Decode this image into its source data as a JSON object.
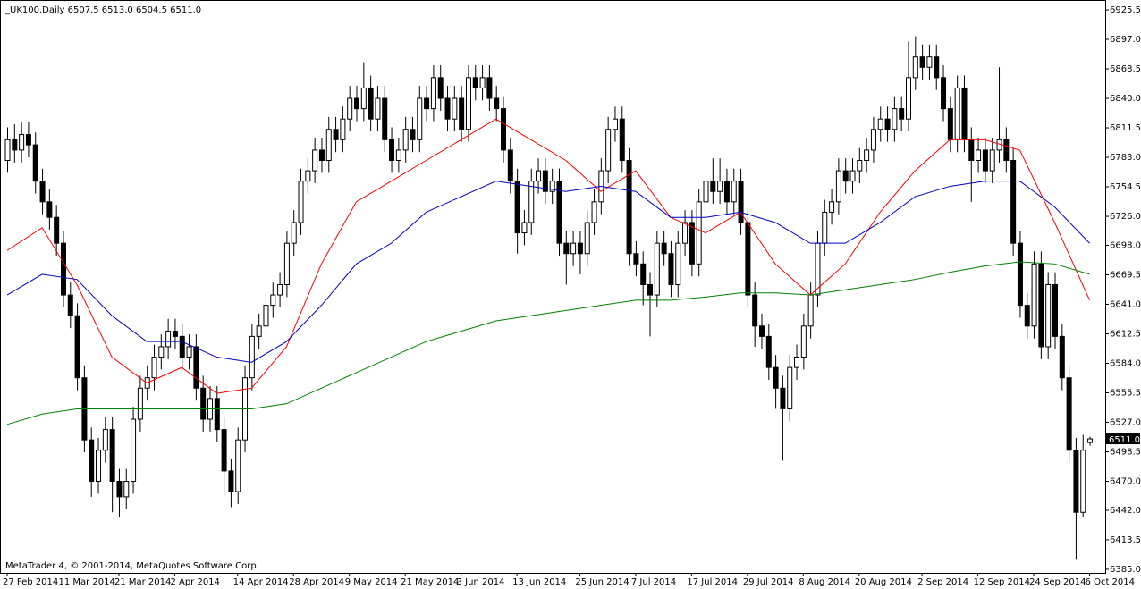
{
  "chart_data": {
    "type": "candlestick",
    "header": "_UK100,Daily  6507.5 6513.0 6504.5 6511.0",
    "footer": "MetaTrader 4, © 2001-2014, MetaQuotes Software Corp.",
    "ylim": [
      6381.5,
      6935
    ],
    "yticks": [
      6925.5,
      {
        "value": 6897,
        "label": "6897.0"
      },
      6868.5,
      {
        "value": 6840,
        "label": "6840.0"
      },
      6811.5,
      {
        "value": 6783,
        "label": "6783.0"
      },
      6754.5,
      {
        "value": 6726,
        "label": "6726.0"
      },
      {
        "value": 6698,
        "label": "6698.0"
      },
      6669.5,
      {
        "value": 6641,
        "label": "6641.0"
      },
      6612.5,
      {
        "value": 6584,
        "label": "6584.0"
      },
      6555.5,
      {
        "value": 6527,
        "label": "6527.0"
      },
      6498.5,
      {
        "value": 6470,
        "label": "6470.0"
      },
      {
        "value": 6442,
        "label": "6442.0"
      },
      6413.5,
      {
        "value": 6385,
        "label": "6385.0"
      }
    ],
    "last_price": {
      "value": 6511,
      "label": "6511.0"
    },
    "up_color": "#ffffff",
    "down_color": "#000000",
    "categories": [
      "27 Feb 2014",
      null,
      null,
      null,
      null,
      null,
      null,
      null,
      "11 Mar 2014",
      null,
      null,
      null,
      null,
      null,
      null,
      null,
      "21 Mar 2014",
      null,
      null,
      null,
      null,
      null,
      null,
      null,
      "2 Apr 2014",
      null,
      null,
      null,
      null,
      null,
      null,
      null,
      null,
      "14 Apr 2014",
      null,
      null,
      null,
      null,
      null,
      null,
      null,
      "28 Apr 2014",
      null,
      null,
      null,
      null,
      null,
      null,
      null,
      "9 May 2014",
      null,
      null,
      null,
      null,
      null,
      null,
      null,
      "21 May 2014",
      null,
      null,
      null,
      null,
      null,
      null,
      null,
      "3 Jun 2014",
      null,
      null,
      null,
      null,
      null,
      null,
      null,
      "13 Jun 2014",
      null,
      null,
      null,
      null,
      null,
      null,
      null,
      null,
      "25 Jun 2014",
      null,
      null,
      null,
      null,
      null,
      null,
      null,
      "7 Jul 2014",
      null,
      null,
      null,
      null,
      null,
      null,
      null,
      "17 Jul 2014",
      null,
      null,
      null,
      null,
      null,
      null,
      null,
      "29 Jul 2014",
      null,
      null,
      null,
      null,
      null,
      null,
      null,
      "8 Aug 2014",
      null,
      null,
      null,
      null,
      null,
      null,
      null,
      "20 Aug 2014",
      null,
      null,
      null,
      null,
      null,
      null,
      null,
      null,
      "2 Sep 2014",
      null,
      null,
      null,
      null,
      null,
      null,
      null,
      "12 Sep 2014",
      null,
      null,
      null,
      null,
      null,
      null,
      null,
      "24 Sep 2014",
      null,
      null,
      null,
      null,
      null,
      null,
      null,
      "6 Oct 2014"
    ],
    "ohlc": [
      [
        6780,
        6812,
        6768,
        6800
      ],
      [
        6800,
        6815,
        6778,
        6790
      ],
      [
        6790,
        6817,
        6778,
        6805
      ],
      [
        6805,
        6817,
        6783,
        6795
      ],
      [
        6795,
        6807,
        6748,
        6760
      ],
      [
        6760,
        6772,
        6728,
        6740
      ],
      [
        6740,
        6752,
        6713,
        6725
      ],
      [
        6725,
        6737,
        6688,
        6700
      ],
      [
        6700,
        6712,
        6638,
        6650
      ],
      [
        6650,
        6662,
        6618,
        6630
      ],
      [
        6630,
        6642,
        6558,
        6570
      ],
      [
        6570,
        6582,
        6498,
        6510
      ],
      [
        6510,
        6522,
        6455,
        6470
      ],
      [
        6470,
        6512,
        6458,
        6500
      ],
      [
        6500,
        6532,
        6488,
        6520
      ],
      [
        6520,
        6532,
        6440,
        6470
      ],
      [
        6470,
        6482,
        6435,
        6455
      ],
      [
        6455,
        6482,
        6443,
        6470
      ],
      [
        6470,
        6542,
        6458,
        6530
      ],
      [
        6530,
        6572,
        6518,
        6560
      ],
      [
        6560,
        6582,
        6548,
        6570
      ],
      [
        6570,
        6602,
        6558,
        6590
      ],
      [
        6590,
        6612,
        6578,
        6600
      ],
      [
        6600,
        6627,
        6588,
        6615
      ],
      [
        6615,
        6627,
        6598,
        6610
      ],
      [
        6610,
        6622,
        6578,
        6590
      ],
      [
        6590,
        6612,
        6578,
        6600
      ],
      [
        6600,
        6612,
        6548,
        6560
      ],
      [
        6560,
        6572,
        6518,
        6530
      ],
      [
        6530,
        6562,
        6518,
        6550
      ],
      [
        6550,
        6562,
        6508,
        6520
      ],
      [
        6520,
        6532,
        6455,
        6480
      ],
      [
        6480,
        6492,
        6445,
        6460
      ],
      [
        6460,
        6522,
        6448,
        6510
      ],
      [
        6510,
        6582,
        6498,
        6570
      ],
      [
        6570,
        6622,
        6558,
        6610
      ],
      [
        6610,
        6632,
        6598,
        6620
      ],
      [
        6620,
        6652,
        6608,
        6640
      ],
      [
        6640,
        6662,
        6628,
        6650
      ],
      [
        6650,
        6672,
        6638,
        6660
      ],
      [
        6660,
        6712,
        6648,
        6700
      ],
      [
        6700,
        6732,
        6688,
        6720
      ],
      [
        6720,
        6772,
        6708,
        6760
      ],
      [
        6760,
        6782,
        6748,
        6770
      ],
      [
        6770,
        6802,
        6758,
        6790
      ],
      [
        6790,
        6802,
        6768,
        6780
      ],
      [
        6780,
        6822,
        6768,
        6810
      ],
      [
        6810,
        6822,
        6788,
        6800
      ],
      [
        6800,
        6832,
        6788,
        6820
      ],
      [
        6820,
        6852,
        6808,
        6840
      ],
      [
        6840,
        6852,
        6818,
        6830
      ],
      [
        6830,
        6875,
        6818,
        6850
      ],
      [
        6850,
        6862,
        6808,
        6820
      ],
      [
        6820,
        6852,
        6808,
        6840
      ],
      [
        6840,
        6852,
        6788,
        6800
      ],
      [
        6800,
        6812,
        6768,
        6780
      ],
      [
        6780,
        6802,
        6768,
        6790
      ],
      [
        6790,
        6822,
        6778,
        6810
      ],
      [
        6810,
        6822,
        6788,
        6800
      ],
      [
        6800,
        6852,
        6788,
        6840
      ],
      [
        6840,
        6852,
        6818,
        6830
      ],
      [
        6830,
        6872,
        6818,
        6860
      ],
      [
        6860,
        6872,
        6828,
        6840
      ],
      [
        6840,
        6852,
        6808,
        6820
      ],
      [
        6820,
        6852,
        6808,
        6840
      ],
      [
        6840,
        6852,
        6798,
        6810
      ],
      [
        6810,
        6872,
        6798,
        6860
      ],
      [
        6860,
        6872,
        6838,
        6850
      ],
      [
        6850,
        6872,
        6838,
        6860
      ],
      [
        6860,
        6872,
        6828,
        6840
      ],
      [
        6840,
        6852,
        6818,
        6830
      ],
      [
        6830,
        6842,
        6778,
        6790
      ],
      [
        6790,
        6802,
        6748,
        6760
      ],
      [
        6760,
        6772,
        6690,
        6710
      ],
      [
        6710,
        6732,
        6698,
        6720
      ],
      [
        6720,
        6772,
        6708,
        6760
      ],
      [
        6760,
        6782,
        6748,
        6770
      ],
      [
        6770,
        6782,
        6738,
        6750
      ],
      [
        6750,
        6772,
        6738,
        6760
      ],
      [
        6760,
        6772,
        6688,
        6700
      ],
      [
        6700,
        6712,
        6660,
        6690
      ],
      [
        6690,
        6712,
        6678,
        6700
      ],
      [
        6700,
        6712,
        6670,
        6690
      ],
      [
        6690,
        6732,
        6678,
        6720
      ],
      [
        6720,
        6752,
        6708,
        6740
      ],
      [
        6740,
        6782,
        6728,
        6770
      ],
      [
        6770,
        6822,
        6758,
        6810
      ],
      [
        6810,
        6832,
        6798,
        6820
      ],
      [
        6820,
        6832,
        6768,
        6780
      ],
      [
        6780,
        6792,
        6678,
        6690
      ],
      [
        6690,
        6702,
        6668,
        6680
      ],
      [
        6680,
        6692,
        6640,
        6660
      ],
      [
        6660,
        6672,
        6610,
        6650
      ],
      [
        6650,
        6712,
        6638,
        6700
      ],
      [
        6700,
        6712,
        6678,
        6690
      ],
      [
        6690,
        6702,
        6648,
        6660
      ],
      [
        6660,
        6712,
        6648,
        6700
      ],
      [
        6700,
        6732,
        6688,
        6720
      ],
      [
        6720,
        6732,
        6668,
        6680
      ],
      [
        6680,
        6752,
        6668,
        6740
      ],
      [
        6740,
        6772,
        6728,
        6760
      ],
      [
        6760,
        6782,
        6738,
        6750
      ],
      [
        6750,
        6782,
        6738,
        6760
      ],
      [
        6760,
        6772,
        6728,
        6740
      ],
      [
        6740,
        6772,
        6728,
        6760
      ],
      [
        6760,
        6772,
        6708,
        6720
      ],
      [
        6720,
        6732,
        6638,
        6650
      ],
      [
        6650,
        6662,
        6600,
        6620
      ],
      [
        6620,
        6632,
        6598,
        6610
      ],
      [
        6610,
        6622,
        6568,
        6580
      ],
      [
        6580,
        6592,
        6540,
        6560
      ],
      [
        6560,
        6572,
        6490,
        6540
      ],
      [
        6540,
        6592,
        6528,
        6580
      ],
      [
        6580,
        6602,
        6568,
        6590
      ],
      [
        6590,
        6632,
        6578,
        6620
      ],
      [
        6620,
        6662,
        6608,
        6650
      ],
      [
        6650,
        6712,
        6638,
        6700
      ],
      [
        6700,
        6742,
        6688,
        6730
      ],
      [
        6730,
        6752,
        6718,
        6740
      ],
      [
        6740,
        6782,
        6728,
        6770
      ],
      [
        6770,
        6782,
        6748,
        6760
      ],
      [
        6760,
        6782,
        6748,
        6770
      ],
      [
        6770,
        6792,
        6758,
        6780
      ],
      [
        6780,
        6802,
        6768,
        6790
      ],
      [
        6790,
        6822,
        6778,
        6810
      ],
      [
        6810,
        6832,
        6798,
        6820
      ],
      [
        6820,
        6832,
        6798,
        6810
      ],
      [
        6810,
        6842,
        6798,
        6830
      ],
      [
        6830,
        6842,
        6808,
        6820
      ],
      [
        6820,
        6895,
        6808,
        6860
      ],
      [
        6860,
        6900,
        6848,
        6880
      ],
      [
        6880,
        6892,
        6858,
        6870
      ],
      [
        6870,
        6892,
        6858,
        6880
      ],
      [
        6880,
        6892,
        6848,
        6860
      ],
      [
        6860,
        6872,
        6818,
        6830
      ],
      [
        6830,
        6842,
        6788,
        6800
      ],
      [
        6800,
        6862,
        6788,
        6850
      ],
      [
        6850,
        6862,
        6788,
        6800
      ],
      [
        6800,
        6812,
        6740,
        6780
      ],
      [
        6780,
        6802,
        6768,
        6790
      ],
      [
        6790,
        6802,
        6758,
        6770
      ],
      [
        6770,
        6802,
        6758,
        6790
      ],
      [
        6790,
        6870,
        6778,
        6800
      ],
      [
        6800,
        6812,
        6768,
        6780
      ],
      [
        6780,
        6792,
        6688,
        6700
      ],
      [
        6700,
        6712,
        6628,
        6640
      ],
      [
        6640,
        6652,
        6608,
        6620
      ],
      [
        6620,
        6692,
        6608,
        6680
      ],
      [
        6680,
        6692,
        6588,
        6600
      ],
      [
        6600,
        6672,
        6588,
        6660
      ],
      [
        6660,
        6672,
        6598,
        6610
      ],
      [
        6610,
        6622,
        6558,
        6570
      ],
      [
        6570,
        6582,
        6488,
        6500
      ],
      [
        6500,
        6512,
        6395,
        6440
      ],
      [
        6440,
        6515,
        6435,
        6500
      ],
      [
        6507.5,
        6513,
        6504.5,
        6511
      ]
    ],
    "moving_averages": [
      {
        "color": "#ff0000",
        "x": [
          0,
          5,
          10,
          15,
          20,
          25,
          30,
          35,
          40,
          45,
          50,
          55,
          60,
          65,
          70,
          75,
          80,
          85,
          90,
          95,
          100,
          105,
          110,
          115,
          120,
          125,
          130,
          135,
          140,
          145,
          150,
          155
        ],
        "values": [
          6693,
          6715,
          6660,
          6590,
          6565,
          6580,
          6555,
          6560,
          6600,
          6680,
          6740,
          6760,
          6780,
          6800,
          6820,
          6800,
          6780,
          6750,
          6770,
          6725,
          6710,
          6730,
          6680,
          6650,
          6680,
          6730,
          6770,
          6800,
          6800,
          6790,
          6720,
          6645
        ]
      },
      {
        "color": "#0000c0",
        "x": [
          0,
          5,
          10,
          15,
          20,
          25,
          30,
          35,
          40,
          45,
          50,
          55,
          60,
          65,
          70,
          75,
          80,
          85,
          90,
          95,
          100,
          105,
          110,
          115,
          120,
          125,
          130,
          135,
          140,
          145,
          150,
          155
        ],
        "values": [
          6650,
          6670,
          6665,
          6630,
          6605,
          6605,
          6590,
          6585,
          6605,
          6640,
          6680,
          6700,
          6730,
          6745,
          6760,
          6755,
          6750,
          6755,
          6750,
          6725,
          6725,
          6730,
          6720,
          6700,
          6700,
          6720,
          6745,
          6755,
          6760,
          6760,
          6735,
          6700
        ]
      },
      {
        "color": "#008000",
        "x": [
          0,
          5,
          10,
          15,
          20,
          25,
          30,
          35,
          40,
          45,
          50,
          55,
          60,
          65,
          70,
          75,
          80,
          85,
          90,
          95,
          100,
          105,
          110,
          115,
          120,
          125,
          130,
          135,
          140,
          145,
          150,
          155
        ],
        "values": [
          6525,
          6535,
          6540,
          6540,
          6540,
          6540,
          6540,
          6540,
          6545,
          6560,
          6575,
          6590,
          6605,
          6615,
          6625,
          6630,
          6635,
          6640,
          6645,
          6645,
          6648,
          6652,
          6652,
          6650,
          6655,
          6660,
          6665,
          6672,
          6678,
          6682,
          6680,
          6670
        ]
      }
    ]
  }
}
